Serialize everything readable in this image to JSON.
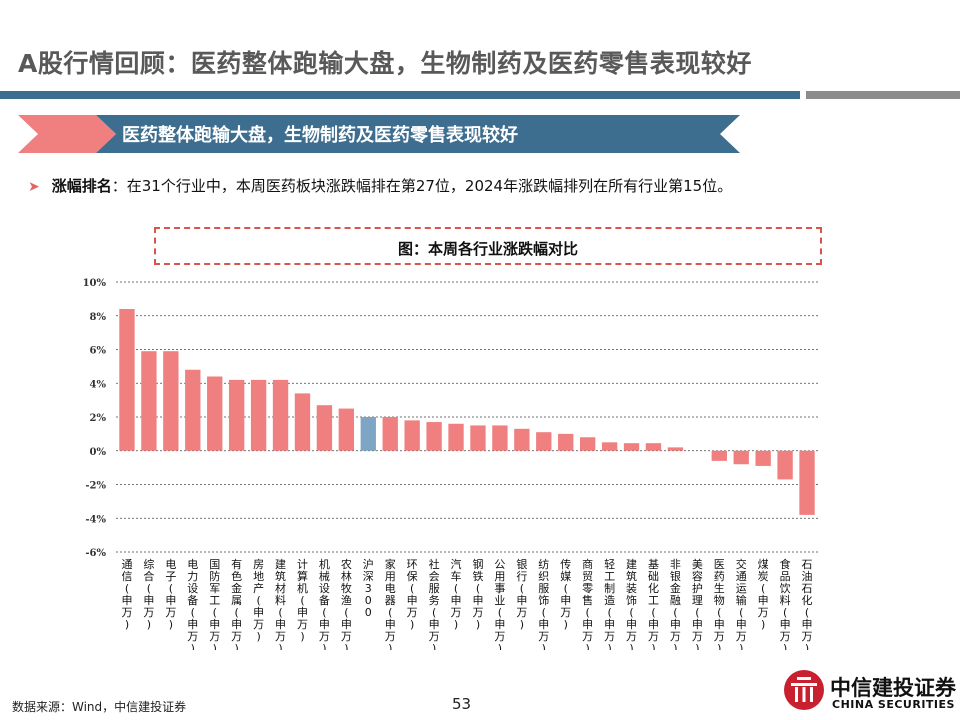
{
  "header": {
    "title": "A股行情回顾：医药整体跑输大盘，生物制药及医药零售表现较好"
  },
  "section": {
    "banner": "医药整体跑输大盘，生物制药及医药零售表现较好"
  },
  "bullet": {
    "key": "涨幅排名",
    "text": "：在31个行业中，本周医药板块涨跌幅排在第27位，2024年涨跌幅排列在所有行业第15位。"
  },
  "chart_title": "图：本周各行业涨跌幅对比",
  "chart_data": {
    "type": "bar",
    "title": "图：本周各行业涨跌幅对比",
    "categories": [
      "通信(申万)",
      "综合(申万)",
      "电子(申万)",
      "电力设备(申万)",
      "国防军工(申万)",
      "有色金属(申万)",
      "房地产(申万)",
      "建筑材料(申万)",
      "计算机(申万)",
      "机械设备(申万)",
      "农林牧渔(申万)",
      "沪深300",
      "家用电器(申万)",
      "环保(申万)",
      "社会服务(申万)",
      "汽车(申万)",
      "钢铁(申万)",
      "公用事业(申万)",
      "银行(申万)",
      "纺织服饰(申万)",
      "传媒(申万)",
      "商贸零售(申万)",
      "轻工制造(申万)",
      "建筑装饰(申万)",
      "基础化工(申万)",
      "非银金融(申万)",
      "美容护理(申万)",
      "医药生物(申万)",
      "交通运输(申万)",
      "煤炭(申万)",
      "食品饮料(申万)",
      "石油石化(申万)"
    ],
    "values": [
      8.4,
      5.9,
      5.9,
      4.8,
      4.4,
      4.2,
      4.2,
      4.2,
      3.4,
      2.7,
      2.5,
      2.0,
      2.0,
      1.8,
      1.7,
      1.6,
      1.5,
      1.5,
      1.3,
      1.1,
      1.0,
      0.8,
      0.5,
      0.45,
      0.45,
      0.2,
      0.0,
      -0.6,
      -0.8,
      -0.9,
      -1.7,
      -3.8
    ],
    "highlight": [
      "沪深300"
    ],
    "colors": {
      "default": "#f08080",
      "highlight": "#7ea6c4"
    },
    "yticks": [
      "10%",
      "8%",
      "6%",
      "4%",
      "2%",
      "0%",
      "-2%",
      "-4%",
      "-6%"
    ],
    "ylim": [
      -6,
      10
    ],
    "grid": true
  },
  "footer": {
    "source": "数据来源：Wind，中信建投证券",
    "page": "53"
  },
  "logo": {
    "cn": "中信建投证券",
    "en": "CHINA SECURITIES"
  }
}
